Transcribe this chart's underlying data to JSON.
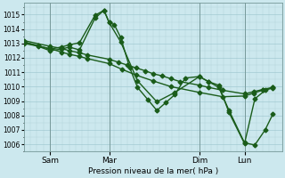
{
  "title": "Pression niveau de la mer( hPa )",
  "bg_color": "#cce8ee",
  "grid_minor_color": "#b0d4da",
  "grid_major_color": "#99c4cc",
  "line_color": "#1a5c1a",
  "marker": "D",
  "markersize": 2.5,
  "linewidth": 1.0,
  "ylim": [
    1005.5,
    1015.8
  ],
  "yticks": [
    1006,
    1007,
    1008,
    1009,
    1010,
    1011,
    1012,
    1013,
    1014,
    1015
  ],
  "xlim": [
    0.0,
    1.0
  ],
  "xtick_positions": [
    0.1,
    0.33,
    0.68,
    0.855
  ],
  "xtick_labels": [
    "Sam",
    "Mar",
    "Dim",
    "Lun"
  ],
  "vline_positions": [
    0.1,
    0.33,
    0.68,
    0.855
  ],
  "series": [
    {
      "x": [
        0.0,
        0.1,
        0.145,
        0.175,
        0.215,
        0.245,
        0.33,
        0.365,
        0.4,
        0.435,
        0.47,
        0.5,
        0.535,
        0.57,
        0.605,
        0.68,
        0.715,
        0.77,
        0.855,
        0.89,
        0.925,
        0.965
      ],
      "y": [
        1013.2,
        1012.8,
        1012.65,
        1012.5,
        1012.35,
        1012.2,
        1011.9,
        1011.7,
        1011.5,
        1011.3,
        1011.1,
        1010.9,
        1010.75,
        1010.55,
        1010.35,
        1010.1,
        1009.95,
        1009.75,
        1009.5,
        1009.65,
        1009.8,
        1009.95
      ]
    },
    {
      "x": [
        0.0,
        0.1,
        0.145,
        0.175,
        0.215,
        0.245,
        0.33,
        0.38,
        0.435,
        0.5,
        0.57,
        0.68,
        0.77,
        0.855,
        0.89,
        0.925,
        0.965
      ],
      "y": [
        1013.0,
        1012.65,
        1012.4,
        1012.25,
        1012.1,
        1011.95,
        1011.6,
        1011.2,
        1010.8,
        1010.4,
        1010.0,
        1009.6,
        1009.3,
        1009.35,
        1009.55,
        1009.75,
        1009.9
      ]
    },
    {
      "x": [
        0.0,
        0.055,
        0.1,
        0.145,
        0.175,
        0.215,
        0.275,
        0.31,
        0.33,
        0.35,
        0.375,
        0.41,
        0.44,
        0.48,
        0.515,
        0.55,
        0.585,
        0.625,
        0.68,
        0.715,
        0.755,
        0.795,
        0.855,
        0.895,
        0.935,
        0.965
      ],
      "y": [
        1013.1,
        1012.85,
        1012.6,
        1012.75,
        1012.9,
        1013.05,
        1014.95,
        1015.3,
        1014.45,
        1014.3,
        1013.4,
        1011.3,
        1009.95,
        1009.1,
        1008.35,
        1008.9,
        1009.45,
        1010.6,
        1010.7,
        1010.35,
        1009.95,
        1008.35,
        1006.1,
        1005.95,
        1007.0,
        1008.1
      ]
    },
    {
      "x": [
        0.0,
        0.055,
        0.1,
        0.145,
        0.175,
        0.215,
        0.275,
        0.31,
        0.33,
        0.375,
        0.44,
        0.515,
        0.585,
        0.68,
        0.715,
        0.755,
        0.795,
        0.855,
        0.895,
        0.935,
        0.965
      ],
      "y": [
        1013.1,
        1012.8,
        1012.5,
        1012.6,
        1012.75,
        1012.55,
        1014.75,
        1015.3,
        1014.45,
        1013.1,
        1010.4,
        1008.95,
        1009.6,
        1010.7,
        1010.35,
        1010.1,
        1008.2,
        1006.05,
        1009.15,
        1009.75,
        1009.95
      ]
    }
  ]
}
